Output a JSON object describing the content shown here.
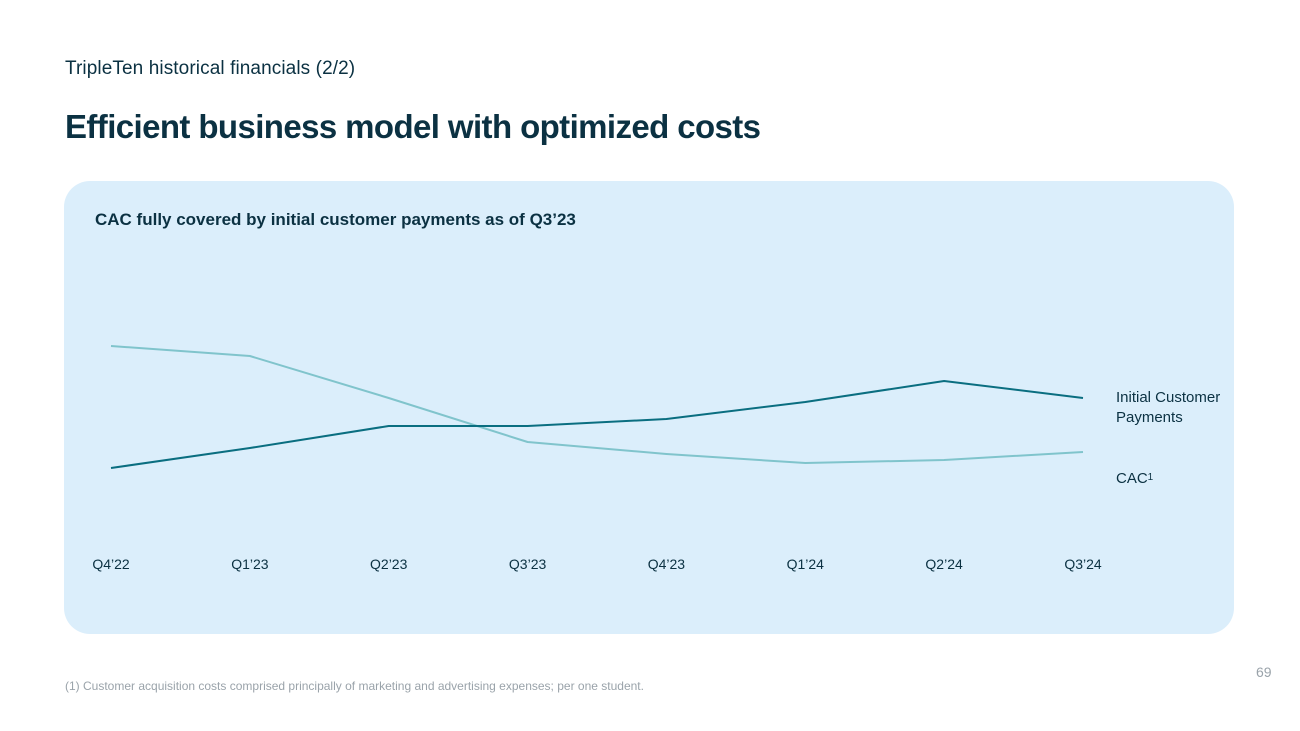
{
  "header": {
    "subtitle": "TripleTen historical financials (2/2)",
    "title": "Efficient business model with optimized costs"
  },
  "panel": {
    "title": "CAC fully covered by initial customer payments as of Q3’23"
  },
  "chart_data": {
    "type": "line",
    "title": "CAC fully covered by initial customer payments as of Q3’23",
    "categories": [
      "Q4’22",
      "Q1’23",
      "Q2’23",
      "Q3’23",
      "Q4’23",
      "Q1’24",
      "Q2’24",
      "Q3’24"
    ],
    "series": [
      {
        "name": "Initial Customer Payments",
        "values": [
          25,
          35,
          46,
          46,
          49.5,
          58,
          68.5,
          60
        ],
        "color": "#0a6e80"
      },
      {
        "name": "CAC",
        "values": [
          86,
          81,
          60,
          38,
          32,
          27.5,
          29,
          33
        ],
        "color": "#80c4cc"
      }
    ],
    "ylim": [
      0,
      100
    ],
    "xlabel": "",
    "ylabel": "",
    "grid": false,
    "legend": "right"
  },
  "legend": {
    "payments_label": "Initial Customer Payments",
    "cac_label": "CAC",
    "cac_superscript": "1"
  },
  "footer": {
    "footnote": "(1) Customer acquisition costs comprised principally of marketing and advertising expenses; per one student.",
    "page_number": "69"
  }
}
